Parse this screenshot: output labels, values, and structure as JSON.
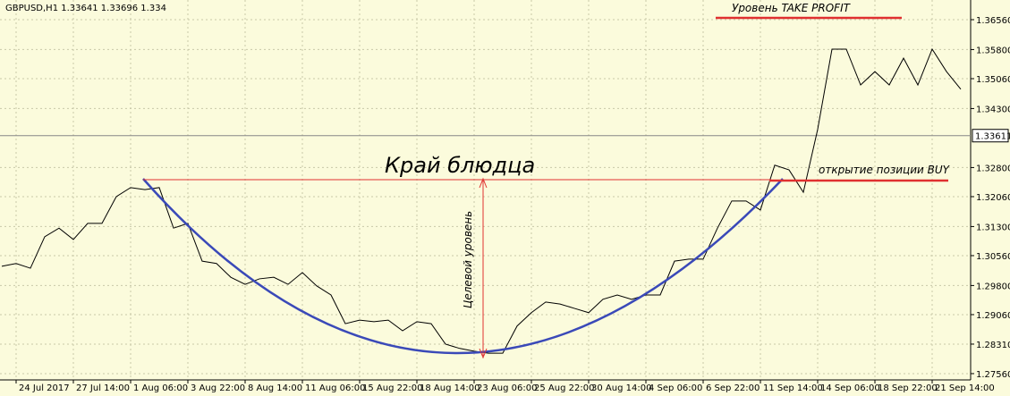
{
  "chart_data": {
    "type": "line",
    "title": "GBPUSD,H1  1.33641 1.33696 1.334",
    "categories": [
      null,
      "24 Jul 2017",
      null,
      null,
      null,
      "27 Jul 14:00",
      null,
      null,
      null,
      "1 Aug 06:00",
      null,
      null,
      null,
      "3 Aug 22:00",
      null,
      null,
      null,
      "8 Aug 14:00",
      null,
      null,
      null,
      "11 Aug 06:00",
      null,
      null,
      null,
      "15 Aug 22:00",
      null,
      null,
      null,
      "18 Aug 14:00",
      null,
      null,
      null,
      "23 Aug 06:00",
      null,
      null,
      null,
      "25 Aug 22:00",
      null,
      null,
      null,
      "30 Aug 14:00",
      null,
      null,
      null,
      "4 Sep 06:00",
      null,
      null,
      null,
      "6 Sep 22:00",
      null,
      null,
      null,
      "11 Sep 14:00",
      null,
      null,
      null,
      "14 Sep 06:00",
      null,
      null,
      null,
      "18 Sep 22:00",
      null,
      null,
      null,
      "21 Sep 14:00",
      null,
      null
    ],
    "values": [
      1.3029,
      1.3036,
      1.3024,
      1.3104,
      1.3126,
      1.3097,
      1.3138,
      1.3138,
      1.3206,
      1.3229,
      1.3224,
      1.3229,
      1.3126,
      1.3138,
      1.3042,
      1.3036,
      1.3001,
      1.2983,
      1.2997,
      1.3001,
      1.2983,
      1.3013,
      1.2979,
      1.2956,
      1.2883,
      1.2892,
      1.2888,
      1.2892,
      1.2865,
      1.2888,
      1.2883,
      1.2831,
      1.282,
      1.2813,
      1.2808,
      1.2808,
      1.2877,
      1.2911,
      1.2938,
      1.2933,
      1.2922,
      1.2911,
      1.2945,
      1.2956,
      1.2945,
      1.2956,
      1.2956,
      1.3042,
      1.3047,
      1.3047,
      1.3126,
      1.3195,
      1.3195,
      1.3172,
      1.3286,
      1.3274,
      1.3217,
      1.3377,
      1.3581,
      1.3581,
      1.349,
      1.3524,
      1.349,
      1.3558,
      1.349,
      1.3581,
      1.3524,
      1.3479
    ],
    "color": "#000000",
    "ylim": [
      1.274,
      1.3706
    ],
    "yticks": [
      {
        "value": 1.2756,
        "label": "1.27560"
      },
      {
        "value": 1.2831,
        "label": "1.28310"
      },
      {
        "value": 1.2906,
        "label": "1.29060"
      },
      {
        "value": 1.298,
        "label": "1.29800"
      },
      {
        "value": 1.3056,
        "label": "1.30560"
      },
      {
        "value": 1.313,
        "label": "1.31300"
      },
      {
        "value": 1.3206,
        "label": "1.32060"
      },
      {
        "value": 1.328,
        "label": "1.32800"
      },
      {
        "value": 1.343,
        "label": "1.34300"
      },
      {
        "value": 1.3506,
        "label": "1.35060"
      },
      {
        "value": 1.358,
        "label": "1.35800"
      },
      {
        "value": 1.3656,
        "label": "1.36560"
      }
    ],
    "current_price": {
      "value": 1.33611,
      "label": "1.33611"
    },
    "grid": true,
    "annotations": [
      "Край блюдца",
      "Уровень TAKE PROFIT",
      "открытие позиции BUY",
      "Целевой уровень"
    ]
  }
}
